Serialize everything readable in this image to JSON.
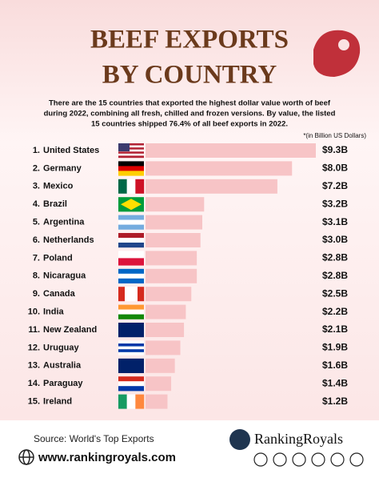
{
  "chart_data": {
    "type": "bar",
    "orientation": "horizontal",
    "title_lines": [
      "BEEF EXPORTS",
      "BY COUNTRY"
    ],
    "subtitle_lines": [
      "There are the 15 countries that exported the highest dollar value worth of beef",
      "during 2022, combining all fresh, chilled and frozen versions. By value, the listed",
      "15 countries shipped 76.4% of all beef exports in 2022."
    ],
    "note": "*(in Billion US Dollars)",
    "ranks": [
      "1.",
      "2.",
      "3.",
      "4.",
      "5.",
      "6.",
      "7.",
      "8.",
      "9.",
      "10.",
      "11.",
      "12.",
      "13.",
      "14.",
      "15."
    ],
    "categories": [
      "United States",
      "Germany",
      "Mexico",
      "Brazil",
      "Argentina",
      "Netherlands",
      "Poland",
      "Nicaragua",
      "Canada",
      "India",
      "New Zealand",
      "Uruguay",
      "Australia",
      "Paraguay",
      "Ireland"
    ],
    "values": [
      9.3,
      8.0,
      7.2,
      3.2,
      3.1,
      3.0,
      2.8,
      2.8,
      2.5,
      2.2,
      2.1,
      1.9,
      1.6,
      1.4,
      1.2
    ],
    "value_labels": [
      "$9.3B",
      "$8.0B",
      "$7.2B",
      "$3.2B",
      "$3.1B",
      "$3.0B",
      "$2.8B",
      "$2.8B",
      "$2.5B",
      "$2.2B",
      "$2.1B",
      "$1.9B",
      "$1.6B",
      "$1.4B",
      "$1.2B"
    ],
    "color": "#f7c4c6",
    "source": "Source: World's Top Exports",
    "website": "www.rankingroyals.com",
    "brand": "RankingRoyals"
  }
}
